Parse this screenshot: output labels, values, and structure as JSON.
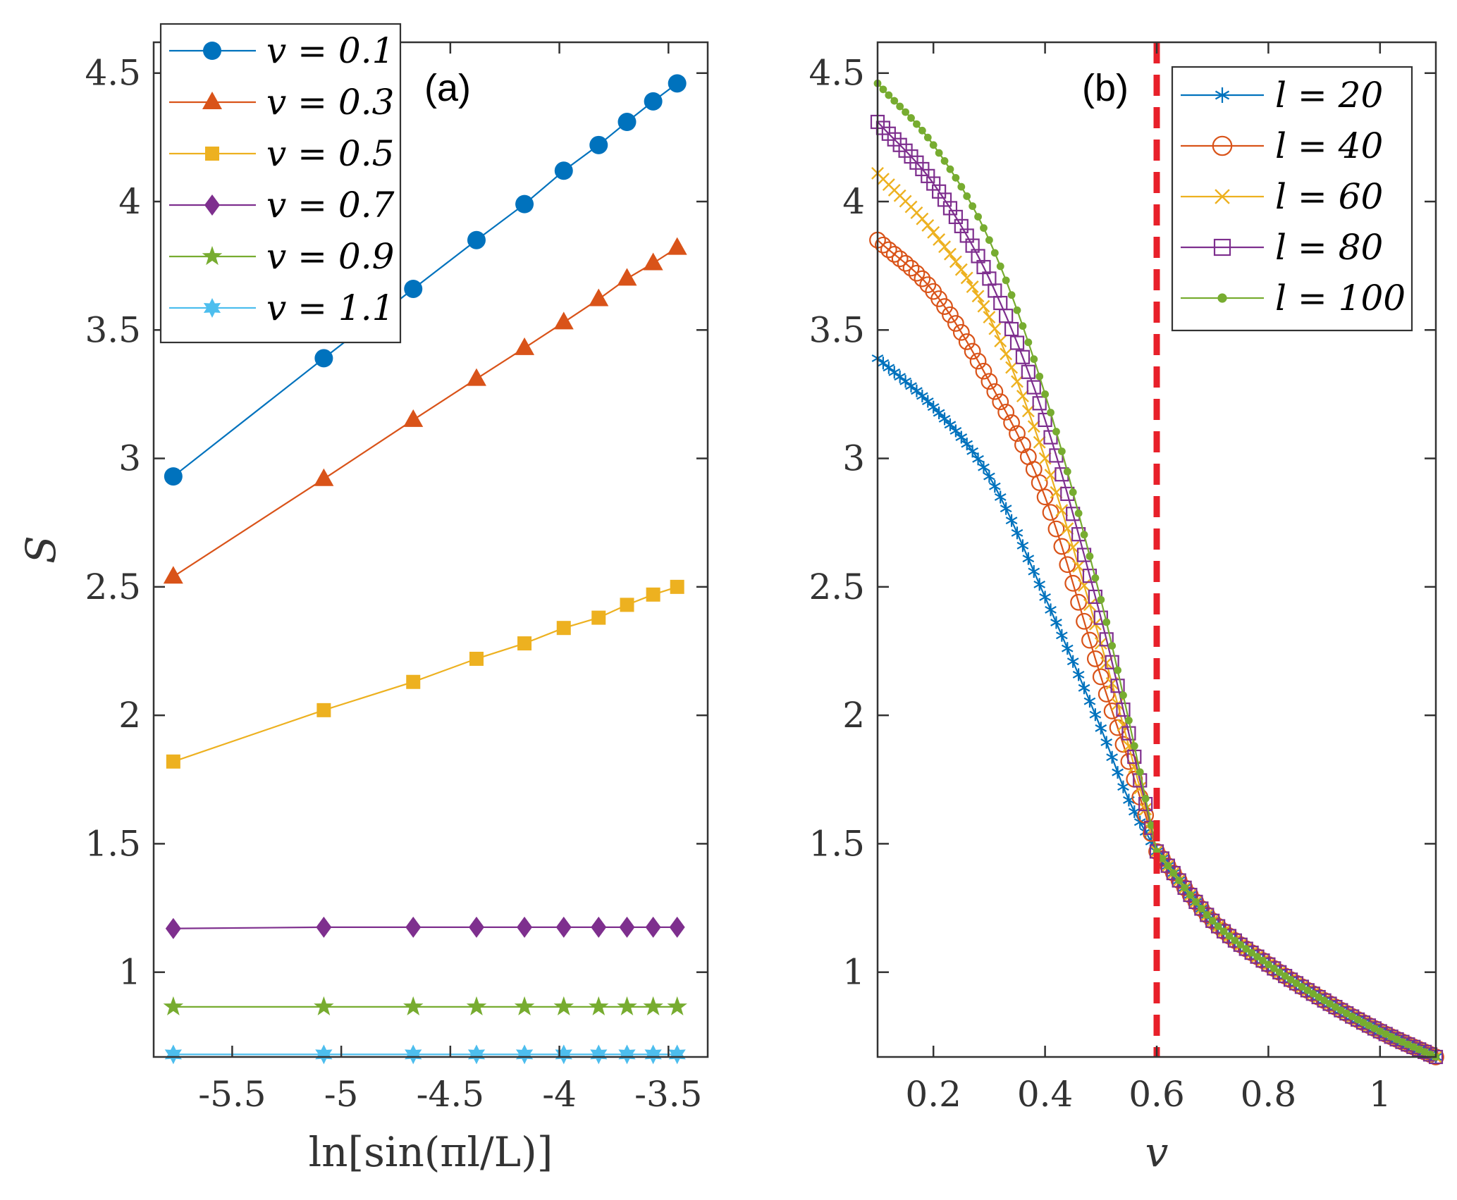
{
  "colors": {
    "blue": "#0072BD",
    "orange": "#D95319",
    "yellow": "#EDB120",
    "purple": "#7E2F8E",
    "green": "#77AC30",
    "cyan": "#4DBEEE",
    "red": "#E8202A",
    "axis": "#333333"
  },
  "chart_data": [
    {
      "type": "line",
      "panel_label": "(a)",
      "xlabel": "ln[sin(πl/L)]",
      "ylabel": "S",
      "xlim": [
        -5.86,
        -3.32
      ],
      "ylim": [
        0.67,
        4.62
      ],
      "xticks": [
        -5.5,
        -5,
        -4.5,
        -4,
        -3.5
      ],
      "xtick_labels": [
        "-5.5",
        "-5",
        "-4.5",
        "-4",
        "-3.5"
      ],
      "yticks": [
        1,
        1.5,
        2,
        2.5,
        3,
        3.5,
        4,
        4.5
      ],
      "ytick_labels": [
        "1",
        "1.5",
        "2",
        "2.5",
        "3",
        "3.5",
        "4",
        "4.5"
      ],
      "legend_position": "top-left",
      "x": [
        -5.77,
        -5.08,
        -4.67,
        -4.38,
        -4.16,
        -3.98,
        -3.82,
        -3.69,
        -3.57,
        -3.46
      ],
      "series": [
        {
          "name": "v = 0.1",
          "legend": "v = 0.1",
          "marker": "circle",
          "color": "blue",
          "values": [
            2.93,
            3.39,
            3.66,
            3.85,
            3.99,
            4.12,
            4.22,
            4.31,
            4.39,
            4.46
          ]
        },
        {
          "name": "v = 0.3",
          "legend": "v = 0.3",
          "marker": "triangle",
          "color": "orange",
          "values": [
            2.54,
            2.92,
            3.15,
            3.31,
            3.43,
            3.53,
            3.62,
            3.7,
            3.76,
            3.82
          ]
        },
        {
          "name": "v = 0.5",
          "legend": "v = 0.5",
          "marker": "square",
          "color": "yellow",
          "values": [
            1.82,
            2.02,
            2.13,
            2.22,
            2.28,
            2.34,
            2.38,
            2.43,
            2.47,
            2.5
          ]
        },
        {
          "name": "v = 0.7",
          "legend": "v = 0.7",
          "marker": "diamond",
          "color": "purple",
          "values": [
            1.17,
            1.175,
            1.175,
            1.175,
            1.175,
            1.175,
            1.175,
            1.175,
            1.175,
            1.175
          ]
        },
        {
          "name": "v = 0.9",
          "legend": "v = 0.9",
          "marker": "star",
          "color": "green",
          "values": [
            0.865,
            0.865,
            0.865,
            0.865,
            0.865,
            0.865,
            0.865,
            0.865,
            0.865,
            0.865
          ]
        },
        {
          "name": "v = 1.1",
          "legend": "v = 1.1",
          "marker": "hexagram",
          "color": "cyan",
          "values": [
            0.68,
            0.68,
            0.68,
            0.68,
            0.68,
            0.68,
            0.68,
            0.68,
            0.68,
            0.68
          ]
        }
      ]
    },
    {
      "type": "line",
      "panel_label": "(b)",
      "xlabel": "v",
      "ylabel": "",
      "xlim": [
        0.1,
        1.1
      ],
      "ylim": [
        0.67,
        4.62
      ],
      "xticks": [
        0.2,
        0.4,
        0.6,
        0.8,
        1
      ],
      "xtick_labels": [
        "0.2",
        "0.4",
        "0.6",
        "0.8",
        "1"
      ],
      "yticks": [
        1,
        1.5,
        2,
        2.5,
        3,
        3.5,
        4,
        4.5
      ],
      "ytick_labels": [
        "1",
        "1.5",
        "2",
        "2.5",
        "3",
        "3.5",
        "4",
        "4.5"
      ],
      "legend_position": "top-right",
      "v_step": 0.01,
      "critical_line": {
        "x": 0.6,
        "style": "dashed",
        "color": "red"
      },
      "series": [
        {
          "name": "l = 20",
          "legend": "l = 20",
          "marker": "asterisk",
          "color": "blue",
          "anchors": [
            [
              0.1,
              3.39
            ],
            [
              0.2,
              3.2
            ],
            [
              0.3,
              2.93
            ],
            [
              0.4,
              2.46
            ],
            [
              0.5,
              1.95
            ],
            [
              0.55,
              1.67
            ],
            [
              0.6,
              1.47
            ]
          ]
        },
        {
          "name": "l = 40",
          "legend": "l = 40",
          "marker": "circle-open",
          "color": "orange",
          "anchors": [
            [
              0.1,
              3.85
            ],
            [
              0.2,
              3.65
            ],
            [
              0.3,
              3.3
            ],
            [
              0.4,
              2.85
            ],
            [
              0.5,
              2.15
            ],
            [
              0.55,
              1.82
            ],
            [
              0.6,
              1.47
            ]
          ]
        },
        {
          "name": "l = 60",
          "legend": "l = 60",
          "marker": "x",
          "color": "yellow",
          "anchors": [
            [
              0.1,
              4.11
            ],
            [
              0.2,
              3.88
            ],
            [
              0.3,
              3.55
            ],
            [
              0.4,
              3.0
            ],
            [
              0.5,
              2.28
            ],
            [
              0.55,
              1.88
            ],
            [
              0.6,
              1.47
            ]
          ]
        },
        {
          "name": "l = 80",
          "legend": "l = 80",
          "marker": "square-open",
          "color": "purple",
          "anchors": [
            [
              0.1,
              4.31
            ],
            [
              0.2,
              4.07
            ],
            [
              0.3,
              3.7
            ],
            [
              0.4,
              3.15
            ],
            [
              0.5,
              2.38
            ],
            [
              0.55,
              1.93
            ],
            [
              0.6,
              1.47
            ]
          ]
        },
        {
          "name": "l = 100",
          "legend": "l = 100",
          "marker": "dot",
          "color": "green",
          "anchors": [
            [
              0.1,
              4.46
            ],
            [
              0.2,
              4.22
            ],
            [
              0.3,
              3.85
            ],
            [
              0.4,
              3.25
            ],
            [
              0.5,
              2.45
            ],
            [
              0.55,
              1.98
            ],
            [
              0.6,
              1.47
            ]
          ]
        }
      ],
      "common_tail": [
        [
          0.6,
          1.47
        ],
        [
          0.7,
          1.2
        ],
        [
          0.8,
          1.03
        ],
        [
          0.9,
          0.89
        ],
        [
          1.0,
          0.77
        ],
        [
          1.1,
          0.67
        ]
      ]
    }
  ]
}
